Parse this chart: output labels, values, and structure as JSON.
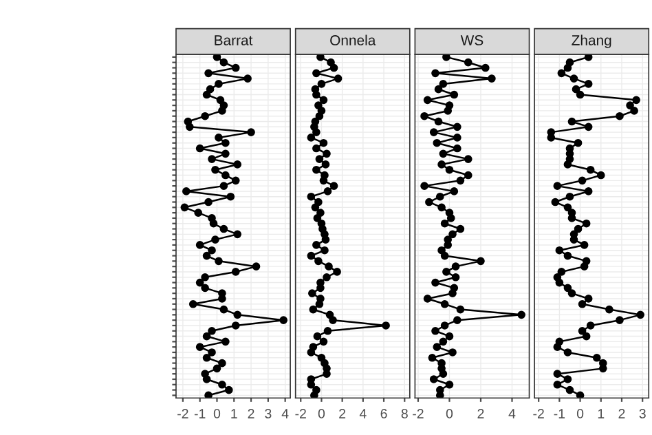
{
  "chart_data": [
    {
      "type": "line",
      "title": "Barrat",
      "orientation": "horizontal",
      "marker": "circle",
      "grid": true,
      "tick_labels": "x",
      "color": "#000000",
      "categories": [
        null,
        null,
        null,
        null,
        null,
        null,
        null,
        null,
        null,
        null,
        null,
        null,
        null,
        null,
        null,
        null,
        null,
        null,
        null,
        null,
        null,
        null,
        null,
        null,
        null,
        null,
        null,
        null,
        null,
        null,
        null,
        null,
        null,
        null,
        null,
        null,
        null,
        null,
        null,
        null,
        null,
        null,
        null,
        null,
        null,
        null,
        null,
        null,
        null,
        null,
        null,
        null,
        null,
        null,
        null,
        null,
        null,
        null,
        null,
        null,
        null,
        null,
        null,
        null
      ],
      "values": [
        0.0,
        0.4,
        1.1,
        -0.5,
        1.8,
        0.1,
        -0.4,
        -0.6,
        0.2,
        0.4,
        0.3,
        -0.7,
        -1.7,
        -1.6,
        2.0,
        0.1,
        0.5,
        -1.0,
        0.5,
        -0.3,
        1.2,
        -0.1,
        0.5,
        1.1,
        0.4,
        -1.8,
        0.8,
        -0.5,
        -1.9,
        -1.1,
        -0.3,
        -0.2,
        0.4,
        1.2,
        -0.1,
        -1.0,
        -0.3,
        -0.6,
        0.1,
        2.3,
        1.1,
        -0.7,
        -1.0,
        -0.7,
        0.3,
        0.3,
        -1.4,
        0.4,
        1.2,
        3.9,
        1.1,
        -0.3,
        -0.6,
        0.5,
        -1.0,
        -0.3,
        -0.6,
        0.3,
        0.0,
        -0.7,
        -0.6,
        0.3,
        0.7,
        -0.5
      ],
      "xlim": [
        -2.4,
        4.3
      ],
      "xticks": [
        -2,
        -1,
        0,
        1,
        2,
        3,
        4
      ]
    },
    {
      "type": "line",
      "title": "Onnela",
      "orientation": "horizontal",
      "marker": "circle",
      "grid": true,
      "tick_labels": "x",
      "color": "#000000",
      "categories": [
        null,
        null,
        null,
        null,
        null,
        null,
        null,
        null,
        null,
        null,
        null,
        null,
        null,
        null,
        null,
        null,
        null,
        null,
        null,
        null,
        null,
        null,
        null,
        null,
        null,
        null,
        null,
        null,
        null,
        null,
        null,
        null,
        null,
        null,
        null,
        null,
        null,
        null,
        null,
        null,
        null,
        null,
        null,
        null,
        null,
        null,
        null,
        null,
        null,
        null,
        null,
        null,
        null,
        null,
        null,
        null,
        null,
        null,
        null,
        null,
        null,
        null,
        null,
        null
      ],
      "values": [
        -0.1,
        0.9,
        1.2,
        -0.5,
        1.6,
        0.0,
        -0.6,
        -0.5,
        0.2,
        -0.3,
        0.0,
        -0.2,
        -0.6,
        -0.7,
        -0.5,
        -1.0,
        0.2,
        -0.5,
        0.5,
        -0.2,
        0.4,
        -0.5,
        0.3,
        0.2,
        1.2,
        0.6,
        -1.0,
        -0.3,
        -0.6,
        -0.1,
        -0.4,
        0.0,
        0.1,
        0.3,
        0.4,
        -0.5,
        0.3,
        -1.0,
        -0.3,
        0.7,
        1.5,
        0.5,
        -0.1,
        -0.1,
        -0.9,
        -0.1,
        -0.2,
        -0.8,
        0.8,
        1.1,
        6.2,
        0.6,
        -0.4,
        0.2,
        -0.8,
        -1.0,
        0.0,
        0.3,
        0.5,
        0.5,
        -1.0,
        -1.0,
        -0.5,
        -0.7
      ],
      "xlim": [
        -2.5,
        8.5
      ],
      "xticks": [
        -2,
        0,
        2,
        4,
        6,
        8
      ]
    },
    {
      "type": "line",
      "title": "WS",
      "orientation": "horizontal",
      "marker": "circle",
      "grid": true,
      "tick_labels": "x",
      "color": "#000000",
      "categories": [
        null,
        null,
        null,
        null,
        null,
        null,
        null,
        null,
        null,
        null,
        null,
        null,
        null,
        null,
        null,
        null,
        null,
        null,
        null,
        null,
        null,
        null,
        null,
        null,
        null,
        null,
        null,
        null,
        null,
        null,
        null,
        null,
        null,
        null,
        null,
        null,
        null,
        null,
        null,
        null,
        null,
        null,
        null,
        null,
        null,
        null,
        null,
        null,
        null,
        null,
        null,
        null,
        null,
        null,
        null,
        null,
        null,
        null,
        null,
        null,
        null,
        null,
        null,
        null
      ],
      "values": [
        -0.2,
        1.2,
        2.3,
        -0.9,
        2.7,
        -0.4,
        -0.7,
        0.3,
        -1.4,
        0.0,
        -0.1,
        -1.6,
        -0.7,
        0.5,
        -1.0,
        0.5,
        -0.8,
        0.5,
        -0.4,
        1.2,
        -0.5,
        0.0,
        1.2,
        0.7,
        -1.6,
        0.3,
        -0.6,
        -1.3,
        -0.5,
        0.0,
        0.1,
        -0.3,
        0.7,
        0.2,
        -0.1,
        -0.1,
        -0.5,
        -0.3,
        2.0,
        0.4,
        -0.2,
        0.4,
        -0.9,
        0.3,
        0.2,
        -1.4,
        -0.3,
        0.7,
        4.6,
        0.5,
        -0.3,
        -0.9,
        0.0,
        -0.4,
        -0.8,
        0.2,
        -1.1,
        -0.5,
        -0.5,
        -0.4,
        -1.0,
        0.0,
        -0.6,
        -0.6
      ],
      "xlim": [
        -2.2,
        5.1
      ],
      "xticks": [
        -2,
        0,
        2,
        4
      ]
    },
    {
      "type": "line",
      "title": "Zhang",
      "orientation": "horizontal",
      "marker": "circle",
      "grid": true,
      "tick_labels": "x",
      "color": "#000000",
      "categories": [
        null,
        null,
        null,
        null,
        null,
        null,
        null,
        null,
        null,
        null,
        null,
        null,
        null,
        null,
        null,
        null,
        null,
        null,
        null,
        null,
        null,
        null,
        null,
        null,
        null,
        null,
        null,
        null,
        null,
        null,
        null,
        null,
        null,
        null,
        null,
        null,
        null,
        null,
        null,
        null,
        null,
        null,
        null,
        null,
        null,
        null,
        null,
        null,
        null,
        null,
        null,
        null,
        null,
        null,
        null,
        null,
        null,
        null,
        null,
        null,
        null,
        null,
        null,
        null
      ],
      "values": [
        0.4,
        -0.5,
        -0.6,
        -0.9,
        -0.3,
        0.4,
        -0.2,
        0.0,
        2.7,
        2.4,
        2.6,
        1.9,
        -0.4,
        0.4,
        -1.4,
        -1.4,
        -0.1,
        -0.5,
        -0.5,
        -0.5,
        -0.6,
        0.5,
        1.0,
        0.1,
        -1.1,
        0.4,
        -0.5,
        -1.2,
        -0.6,
        -0.4,
        -0.4,
        0.3,
        -0.1,
        -0.3,
        -0.3,
        0.2,
        -1.0,
        -0.6,
        0.3,
        0.2,
        -0.9,
        -1.1,
        -1.0,
        -0.6,
        -0.4,
        0.4,
        0.1,
        1.4,
        2.9,
        1.9,
        0.5,
        0.1,
        0.3,
        -1.0,
        -1.1,
        -0.6,
        0.8,
        1.1,
        1.1,
        -1.1,
        -0.6,
        -1.1,
        -0.5,
        0.0
      ],
      "xlim": [
        -2.2,
        3.3
      ],
      "xticks": [
        -2,
        -1,
        0,
        1,
        2,
        3
      ]
    }
  ]
}
